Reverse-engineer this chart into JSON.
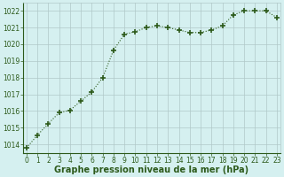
{
  "x": [
    0,
    1,
    2,
    3,
    4,
    5,
    6,
    7,
    8,
    9,
    10,
    11,
    12,
    13,
    14,
    15,
    16,
    17,
    18,
    19,
    20,
    21,
    22,
    23
  ],
  "y": [
    1013.8,
    1014.55,
    1015.25,
    1015.9,
    1016.05,
    1016.6,
    1017.15,
    1018.0,
    1019.65,
    1020.6,
    1020.75,
    1021.0,
    1021.1,
    1021.0,
    1020.85,
    1020.7,
    1020.7,
    1020.85,
    1021.1,
    1021.75,
    1022.0,
    1022.0,
    1022.0,
    1021.6
  ],
  "line_color": "#2d5a1b",
  "marker": "+",
  "marker_size": 4,
  "marker_linewidth": 1.2,
  "bg_color": "#d5f0f0",
  "grid_color": "#b0c8c8",
  "xlabel": "Graphe pression niveau de la mer (hPa)",
  "xlabel_fontsize": 7,
  "ylabel_ticks": [
    1014,
    1015,
    1016,
    1017,
    1018,
    1019,
    1020,
    1021,
    1022
  ],
  "xlim": [
    -0.3,
    23.3
  ],
  "ylim": [
    1013.5,
    1022.5
  ],
  "xticks": [
    0,
    1,
    2,
    3,
    4,
    5,
    6,
    7,
    8,
    9,
    10,
    11,
    12,
    13,
    14,
    15,
    16,
    17,
    18,
    19,
    20,
    21,
    22,
    23
  ],
  "tick_fontsize": 5.5,
  "line_width": 0.8
}
